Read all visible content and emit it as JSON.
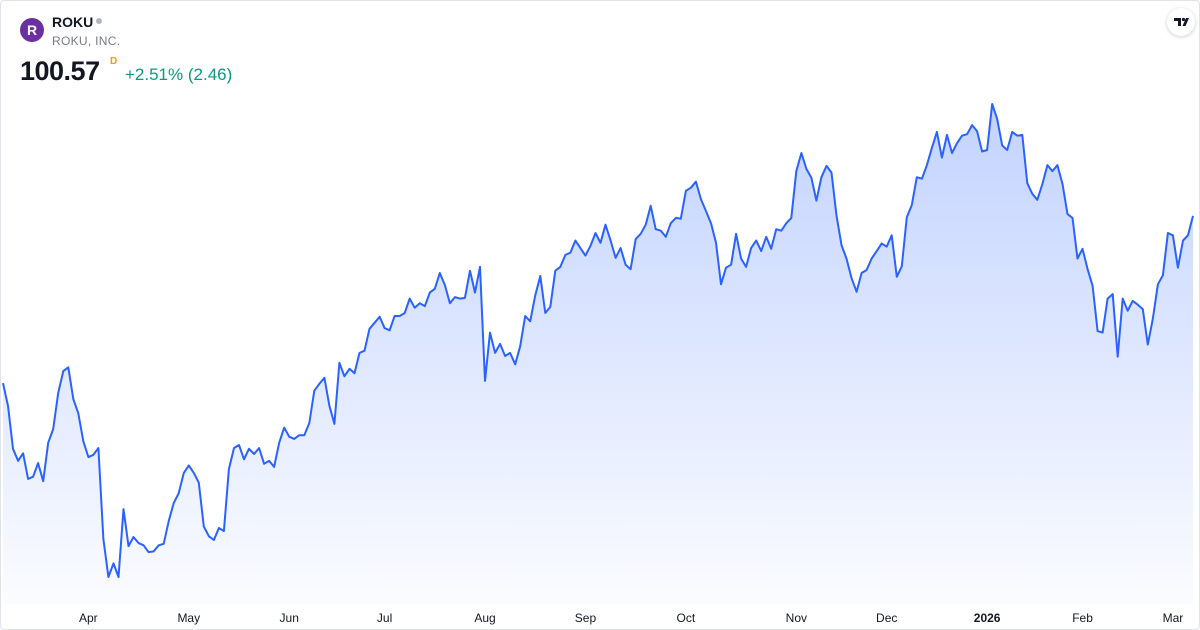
{
  "header": {
    "logo_letter": "R",
    "symbol": "ROKU",
    "company": "ROKU, INC.",
    "price": "100.57",
    "interval": "D",
    "change": "+2.51% (2.46)"
  },
  "chart_data": {
    "type": "area",
    "color": "#2962ff",
    "categories": [
      null,
      null,
      null,
      null,
      null,
      null,
      null,
      null,
      null,
      null,
      null,
      null,
      null,
      null,
      null,
      null,
      null,
      "Apr",
      null,
      null,
      null,
      null,
      null,
      null,
      null,
      null,
      null,
      null,
      null,
      null,
      null,
      null,
      null,
      null,
      null,
      null,
      null,
      "May",
      null,
      null,
      null,
      null,
      null,
      null,
      null,
      null,
      null,
      null,
      null,
      null,
      null,
      null,
      null,
      null,
      null,
      null,
      null,
      "Jun",
      null,
      null,
      null,
      null,
      null,
      null,
      null,
      null,
      null,
      null,
      null,
      null,
      null,
      null,
      null,
      null,
      null,
      null,
      "Jul",
      null,
      null,
      null,
      null,
      null,
      null,
      null,
      null,
      null,
      null,
      null,
      null,
      null,
      null,
      null,
      null,
      null,
      null,
      null,
      "Aug",
      null,
      null,
      null,
      null,
      null,
      null,
      null,
      null,
      null,
      null,
      null,
      null,
      null,
      null,
      null,
      null,
      null,
      null,
      null,
      "Sep",
      null,
      null,
      null,
      null,
      null,
      null,
      null,
      null,
      null,
      null,
      null,
      null,
      null,
      null,
      null,
      null,
      null,
      null,
      null,
      "Oct",
      null,
      null,
      null,
      null,
      null,
      null,
      null,
      null,
      null,
      null,
      null,
      null,
      null,
      null,
      null,
      null,
      null,
      null,
      null,
      null,
      null,
      "Nov",
      null,
      null,
      null,
      null,
      null,
      null,
      null,
      null,
      null,
      null,
      null,
      null,
      null,
      null,
      null,
      null,
      null,
      "Dec",
      null,
      null,
      null,
      null,
      null,
      null,
      null,
      null,
      null,
      null,
      null,
      null,
      null,
      null,
      null,
      null,
      null,
      null,
      null,
      "2026",
      null,
      null,
      null,
      null,
      null,
      null,
      null,
      null,
      null,
      null,
      null,
      null,
      null,
      null,
      null,
      null,
      null,
      null,
      "Feb",
      null,
      null,
      null,
      null,
      null,
      null,
      null,
      null,
      null,
      null,
      null,
      null,
      null,
      null,
      null,
      null,
      null,
      "Mar",
      null,
      null,
      null,
      null
    ],
    "values": [
      78.4,
      75.4,
      69.7,
      68.1,
      69.1,
      65.7,
      66.0,
      67.8,
      65.4,
      70.5,
      72.3,
      77.1,
      80.0,
      80.5,
      76.3,
      74.4,
      70.7,
      68.6,
      68.9,
      69.8,
      57.7,
      52.7,
      54.5,
      52.7,
      61.7,
      56.8,
      58.0,
      57.2,
      56.9,
      56.0,
      56.1,
      56.9,
      57.1,
      60.1,
      62.5,
      63.8,
      66.5,
      67.5,
      66.5,
      65.2,
      59.4,
      58.1,
      57.6,
      59.2,
      58.8,
      67.0,
      69.8,
      70.2,
      68.3,
      69.7,
      69.0,
      69.8,
      67.7,
      68.1,
      67.3,
      70.5,
      72.5,
      71.3,
      71.0,
      71.5,
      71.5,
      73.1,
      77.4,
      78.3,
      79.1,
      75.4,
      73.0,
      81.1,
      79.3,
      80.3,
      79.7,
      82.4,
      82.7,
      85.6,
      86.4,
      87.2,
      85.7,
      85.4,
      87.3,
      87.3,
      87.7,
      89.6,
      88.4,
      89.0,
      88.6,
      90.4,
      90.9,
      93.0,
      91.4,
      89.0,
      89.8,
      89.6,
      89.7,
      93.3,
      90.4,
      93.8,
      78.7,
      85.1,
      82.4,
      83.6,
      82.0,
      82.4,
      80.9,
      83.3,
      87.3,
      86.6,
      90.0,
      92.6,
      87.7,
      88.5,
      93.3,
      93.8,
      95.4,
      95.7,
      97.3,
      96.3,
      95.3,
      96.6,
      98.3,
      97.0,
      99.4,
      97.3,
      95.0,
      96.3,
      94.1,
      93.5,
      97.5,
      98.2,
      99.4,
      101.9,
      98.8,
      98.6,
      97.8,
      99.6,
      100.3,
      100.2,
      103.9,
      104.3,
      105.1,
      102.8,
      101.2,
      99.6,
      97.0,
      91.5,
      93.7,
      94.1,
      98.2,
      94.9,
      93.8,
      96.3,
      97.3,
      95.9,
      97.8,
      96.2,
      98.8,
      98.6,
      99.6,
      100.3,
      106.5,
      108.9,
      106.8,
      105.6,
      102.6,
      105.7,
      107.2,
      106.3,
      100.6,
      96.7,
      94.9,
      92.3,
      90.5,
      93.0,
      93.4,
      94.9,
      95.9,
      96.9,
      96.5,
      98.0,
      92.5,
      93.9,
      100.4,
      102.0,
      105.7,
      105.5,
      107.3,
      109.6,
      111.7,
      108.3,
      111.3,
      108.9,
      110.2,
      111.2,
      111.4,
      112.6,
      111.8,
      109.1,
      109.3,
      115.4,
      113.4,
      109.9,
      109.3,
      111.7,
      111.2,
      111.3,
      104.9,
      103.5,
      102.7,
      104.8,
      107.3,
      106.5,
      107.3,
      104.8,
      100.8,
      100.3,
      94.9,
      96.2,
      93.5,
      91.3,
      85.3,
      85.1,
      89.6,
      90.2,
      81.9,
      89.6,
      88.0,
      89.3,
      88.8,
      88.2,
      83.5,
      86.9,
      91.5,
      92.7,
      98.3,
      98.0,
      93.7,
      97.3,
      98.0,
      100.57
    ]
  }
}
